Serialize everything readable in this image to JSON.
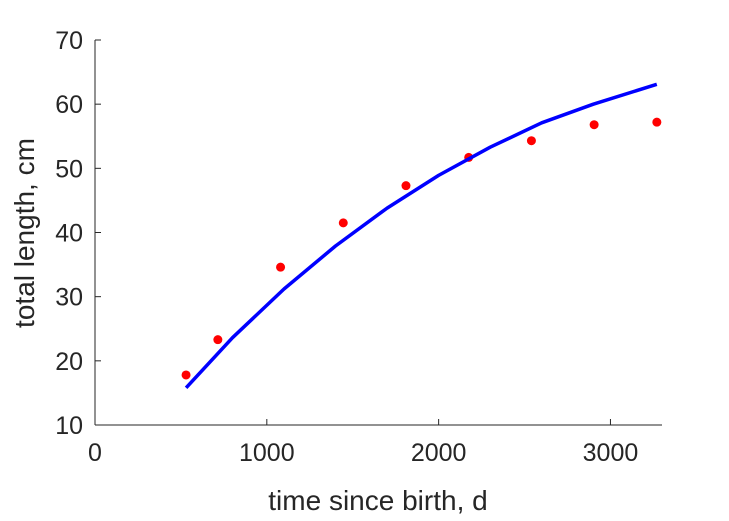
{
  "chart_data": {
    "type": "scatter",
    "title": "",
    "xlabel": "time since birth, d",
    "ylabel": "total length, cm",
    "xlim": [
      0,
      3300
    ],
    "ylim": [
      10,
      70
    ],
    "xticks": [
      0,
      1000,
      2000,
      3000
    ],
    "yticks": [
      10,
      20,
      30,
      40,
      50,
      60,
      70
    ],
    "xtick_labels": [
      "0",
      "1000",
      "2000",
      "3000"
    ],
    "ytick_labels": [
      "10",
      "20",
      "30",
      "40",
      "50",
      "60",
      "70"
    ],
    "grid": false,
    "legend": "none",
    "series": [
      {
        "type": "scatter",
        "color": "#ff0000",
        "x": [
          530,
          715,
          1080,
          1445,
          1810,
          2175,
          2540,
          2905,
          3270
        ],
        "y": [
          17.8,
          23.3,
          34.6,
          41.5,
          47.3,
          51.7,
          54.3,
          56.8,
          57.2
        ]
      },
      {
        "type": "line",
        "color": "#0000ff",
        "x": [
          530,
          800,
          1100,
          1400,
          1700,
          2000,
          2300,
          2600,
          2900,
          3270
        ],
        "y": [
          15.8,
          23.6,
          31.2,
          37.9,
          43.8,
          48.9,
          53.3,
          57.1,
          60.0,
          63.1
        ]
      }
    ]
  }
}
